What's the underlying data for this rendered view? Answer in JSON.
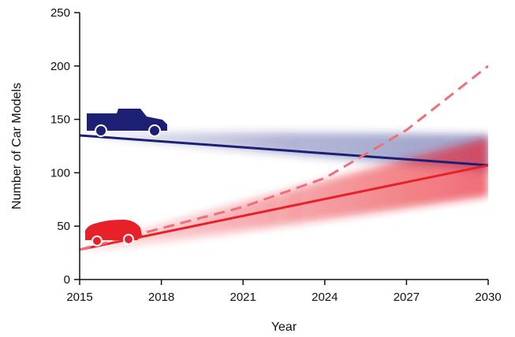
{
  "chart_data": {
    "type": "line",
    "title": "",
    "xlabel": "Year",
    "ylabel": "Number of Car Models",
    "xlim": [
      2015,
      2030
    ],
    "ylim": [
      0,
      250
    ],
    "x_ticks": [
      "2015",
      "2018",
      "2021",
      "2024",
      "2027",
      "2030"
    ],
    "y_ticks": [
      "0",
      "50",
      "100",
      "150",
      "200",
      "250"
    ],
    "grid": false,
    "legend": "icons",
    "series": [
      {
        "color": "#1c1f73",
        "x": [
          2015,
          2030
        ],
        "y": [
          135,
          107
        ],
        "band_upper": [
          135,
          136
        ],
        "band_lower": [
          135,
          101
        ]
      },
      {
        "color": "#e8202a",
        "x": [
          2015,
          2030
        ],
        "y": [
          28,
          107
        ],
        "band_upper": [
          28,
          133
        ],
        "band_lower": [
          28,
          78
        ]
      },
      {
        "color": "#ef6f78",
        "style": "dashed",
        "x": [
          2015,
          2018,
          2021,
          2024,
          2027,
          2030
        ],
        "y": [
          28,
          48,
          68,
          95,
          140,
          200
        ]
      }
    ],
    "icons": [
      {
        "name": "pickup-truck-icon",
        "color": "#1c1f73"
      },
      {
        "name": "electric-car-icon",
        "color": "#e8202a"
      }
    ]
  }
}
